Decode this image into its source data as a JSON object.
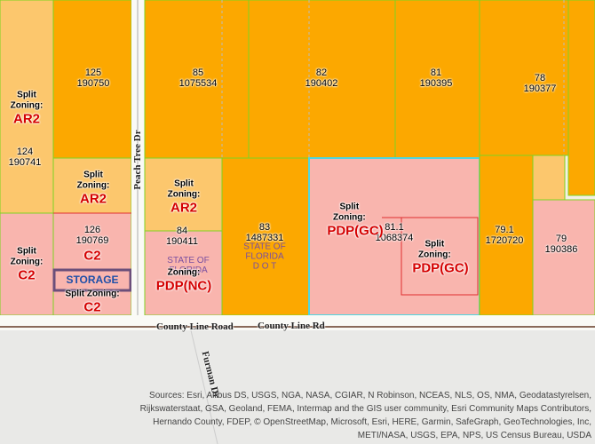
{
  "parcels": [
    {
      "id": "125",
      "number": "190750"
    },
    {
      "id": "124",
      "number": "190741"
    },
    {
      "id": "126",
      "number": "190769"
    },
    {
      "id": "85",
      "number": "1075534"
    },
    {
      "id": "84",
      "number": "190411"
    },
    {
      "id": "83",
      "number": "1487331"
    },
    {
      "id": "82",
      "number": "190402"
    },
    {
      "id": "81",
      "number": "190395"
    },
    {
      "id": "78",
      "number": "190377"
    },
    {
      "id": "81.1",
      "number": "1068374"
    },
    {
      "id": "79.1",
      "number": "1720720"
    },
    {
      "id": "79",
      "number": "190386"
    }
  ],
  "zoning": [
    {
      "label": "Split Zoning:",
      "code": "AR2"
    },
    {
      "label": "Split Zoning:",
      "code": "C2"
    },
    {
      "label": "Split Zoning:",
      "code": "AR2"
    },
    {
      "code": "C2"
    },
    {
      "label": "Split Zoning:",
      "code": "C2"
    },
    {
      "label": "Split Zoning:",
      "code": "AR2"
    },
    {
      "label": "Zoning:",
      "code": "PDP(NC)"
    },
    {
      "label": "Split Zoning:",
      "code": "PDP(GC)"
    },
    {
      "label": "Split Zoning:",
      "code": "PDP(GC)"
    }
  ],
  "owners": {
    "storage": "STORAGE",
    "state_84": "STATE OF FLORIDA",
    "state_83": "STATE OF FLORIDA",
    "dot_83": "D O T"
  },
  "roads": {
    "peach_tree": "Peach Tree Dr",
    "county_line_road": "County Line Road",
    "county_line_rd": "County Line Rd",
    "furman": "Furman Dr"
  },
  "attribution": "Sources: Esri, Airbus DS, USGS, NGA, NASA, CGIAR, N Robinson, NCEAS, NLS, OS, NMA, Geodatastyrelsen, Rijkswaterstaat, GSA, Geoland, FEMA, Intermap and the GIS user community, Esri Community Maps Contributors, Hernando County, FDEP, © OpenStreetMap, Microsoft, Esri, HERE, Garmin, SafeGraph, GeoTechnologies, Inc, METI/NASA, USGS, EPA, NPS, US Census Bureau, USDA"
}
